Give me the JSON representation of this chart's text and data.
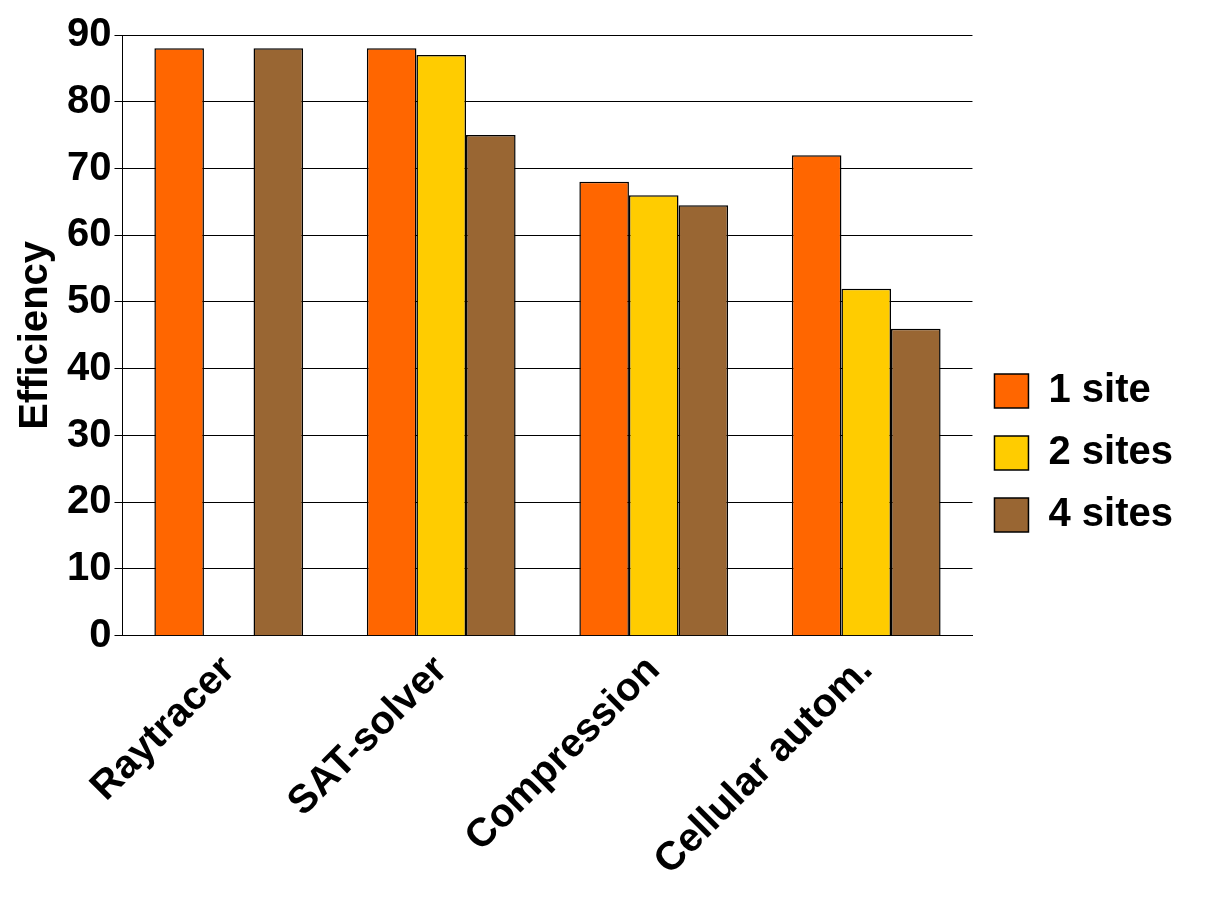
{
  "chart_data": {
    "type": "bar",
    "ylabel": "Efficiency",
    "categories": [
      "Raytracer",
      "SAT-solver",
      "Compression",
      "Cellular autom."
    ],
    "series": [
      {
        "name": "1 site",
        "color": "#ff6600",
        "values": [
          88,
          88,
          68,
          72
        ]
      },
      {
        "name": "2 sites",
        "color": "#ffcc00",
        "values": [
          0,
          87,
          66,
          52
        ]
      },
      {
        "name": "4 sites",
        "color": "#996633",
        "values": [
          88,
          75,
          64.5,
          46
        ]
      }
    ],
    "ylim": [
      0,
      90
    ],
    "yticks": [
      0,
      10,
      20,
      30,
      40,
      50,
      60,
      70,
      80,
      90
    ],
    "grid": "y",
    "legend": "right"
  }
}
